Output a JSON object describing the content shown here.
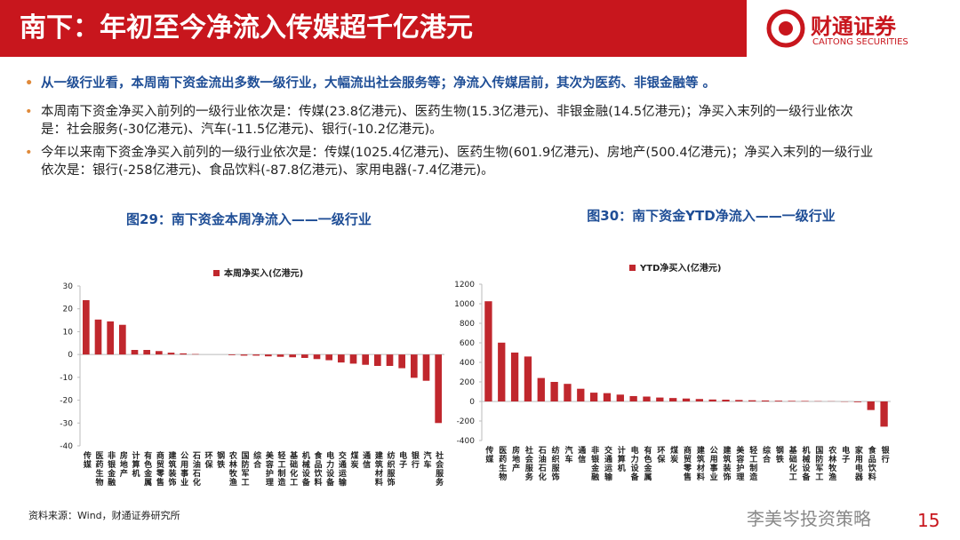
{
  "header": {
    "title": "南下：年初至今净流入传媒超千亿港元",
    "logo_name": "财通证券",
    "logo_sub": "CAITONG SECURITIES"
  },
  "bullets": [
    "从一级行业看，本周南下资金流出多数一级行业，大幅流出社会服务等；净流入传媒居前，其次为医药、非银金融等 。",
    "本周南下资金净买入前列的一级行业依次是：传媒(23.8亿港元)、医药生物(15.3亿港元)、非银金融(14.5亿港元)；净买入末列的一级行业依次是：社会服务(-30亿港元)、汽车(-11.5亿港元)、银行(-10.2亿港元)。",
    "今年以来南下资金净买入前列的一级行业依次是：传媒(1025.4亿港元)、医药生物(601.9亿港元)、房地产(500.4亿港元)；净买入末列的一级行业依次是：银行(-258亿港元)、食品饮料(-87.8亿港元)、家用电器(-7.4亿港元)。"
  ],
  "chart_data": [
    {
      "type": "bar",
      "title": "图29：南下资金本周净流入——一级行业",
      "series": [
        {
          "name": "本周净买入(亿港元)",
          "color": "#c0272d",
          "values": [
            23.8,
            15.3,
            14.5,
            13,
            2,
            2,
            1.5,
            0.8,
            0.5,
            0.2,
            0,
            0,
            -0.3,
            -0.5,
            -0.5,
            -0.8,
            -1,
            -1.2,
            -1.5,
            -2,
            -2.5,
            -3.5,
            -4,
            -4.5,
            -5,
            -5,
            -6,
            -10.2,
            -11.5,
            -30
          ]
        }
      ],
      "categories": [
        "传媒",
        "医药生物",
        "非银金融",
        "房地产",
        "计算机",
        "有色金属",
        "商贸零售",
        "建筑装饰",
        "公用事业",
        "石油石化",
        "环保",
        "钢铁",
        "农林牧渔",
        "国防军工",
        "综合",
        "美容护理",
        "轻工制造",
        "基础化工",
        "机械设备",
        "食品饮料",
        "电力设备",
        "交通运输",
        "煤炭",
        "通信",
        "建筑材料",
        "纺织服饰",
        "电子",
        "银行",
        "汽车",
        "社会服务"
      ],
      "ylim": [
        -40,
        30
      ],
      "yticks": [
        -40,
        -30,
        -20,
        -10,
        0,
        10,
        20,
        30
      ]
    },
    {
      "type": "bar",
      "title": "图30：南下资金YTD净流入——一级行业",
      "series": [
        {
          "name": "YTD净买入(亿港元)",
          "color": "#c0272d",
          "values": [
            1025.4,
            601.9,
            500.4,
            460,
            240,
            200,
            180,
            130,
            90,
            85,
            70,
            55,
            50,
            40,
            35,
            30,
            25,
            20,
            18,
            15,
            12,
            10,
            8,
            6,
            5,
            3,
            2,
            -3,
            -7.4,
            -87.8,
            -258
          ]
        }
      ],
      "categories": [
        "传媒",
        "医药生物",
        "房地产",
        "社会服务",
        "石油石化",
        "纺织服饰",
        "汽车",
        "通信",
        "非银金融",
        "交通运输",
        "计算机",
        "电力设备",
        "有色金属",
        "环保",
        "煤炭",
        "商贸零售",
        "建筑材料",
        "公用事业",
        "建筑装饰",
        "美容护理",
        "轻工制造",
        "综合",
        "钢铁",
        "基础化工",
        "机械设备",
        "国防军工",
        "农林牧渔",
        "电子",
        "家用电器",
        "食品饮料",
        "银行"
      ],
      "ylim": [
        -400,
        1200
      ],
      "yticks": [
        -400,
        -200,
        0,
        200,
        400,
        600,
        800,
        1000,
        1200
      ]
    }
  ],
  "footer": {
    "source": "资料来源：Wind，财通证券研究所",
    "watermark": "李美岑投资策略",
    "page": "15"
  }
}
